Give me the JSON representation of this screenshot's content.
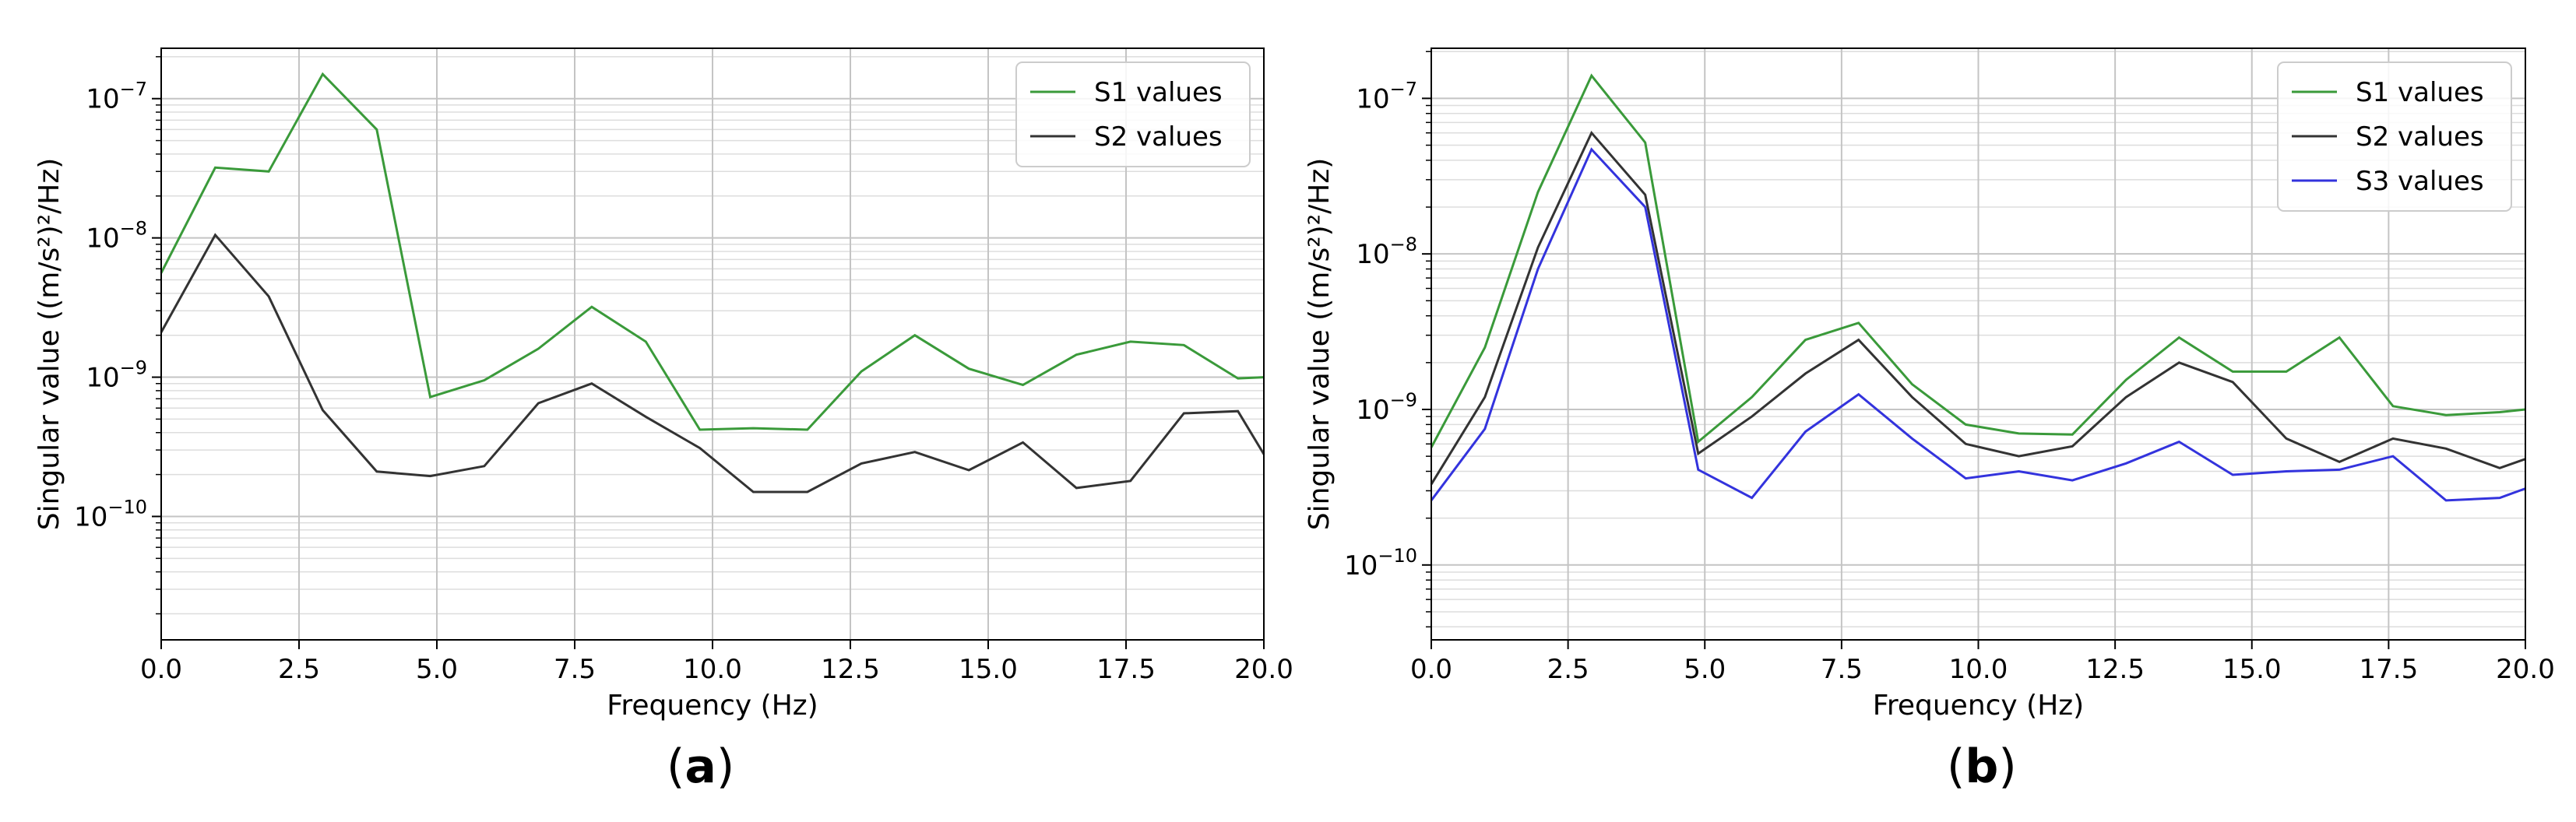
{
  "chart_data": [
    {
      "type": "line",
      "panel": "a",
      "xlabel": "Frequency (Hz)",
      "ylabel": "Singular value ((m/s²)²/Hz)",
      "xlim": [
        0,
        20
      ],
      "ylim": [
        1.3e-11,
        2.3e-07
      ],
      "yscale": "log",
      "grid": true,
      "legend_position": "top-right",
      "x_ticks": [
        0,
        2.5,
        5,
        7.5,
        10,
        12.5,
        15,
        17.5,
        20
      ],
      "x_tick_labels": [
        "0.0",
        "2.5",
        "5.0",
        "7.5",
        "10.0",
        "12.5",
        "15.0",
        "17.5",
        "20.0"
      ],
      "y_ticks": [
        {
          "value": 1e-10,
          "base": "10",
          "exp": "−10"
        },
        {
          "value": 1e-09,
          "base": "10",
          "exp": "−9"
        },
        {
          "value": 1e-08,
          "base": "10",
          "exp": "−8"
        },
        {
          "value": 1e-07,
          "base": "10",
          "exp": "−7"
        }
      ],
      "x": [
        0,
        0.98,
        1.95,
        2.93,
        3.91,
        4.88,
        5.86,
        6.84,
        7.81,
        8.79,
        9.77,
        10.74,
        11.72,
        12.7,
        13.67,
        14.65,
        15.63,
        16.6,
        17.58,
        18.55,
        19.53,
        20.0
      ],
      "series": [
        {
          "name": "S1 values",
          "color": "#3a9a3a",
          "values": [
            5.6e-09,
            3.2e-08,
            3e-08,
            1.5e-07,
            6e-08,
            7.2e-10,
            9.5e-10,
            1.6e-09,
            3.2e-09,
            1.8e-09,
            4.2e-10,
            4.3e-10,
            4.2e-10,
            1.1e-09,
            2e-09,
            1.15e-09,
            8.8e-10,
            1.45e-09,
            1.8e-09,
            1.7e-09,
            9.8e-10,
            1e-09
          ]
        },
        {
          "name": "S2 values",
          "color": "#333333",
          "values": [
            2.1e-09,
            1.05e-08,
            3.8e-09,
            5.8e-10,
            2.1e-10,
            1.95e-10,
            2.3e-10,
            6.5e-10,
            9e-10,
            5.2e-10,
            3.1e-10,
            1.5e-10,
            1.5e-10,
            2.4e-10,
            2.9e-10,
            2.15e-10,
            3.4e-10,
            1.6e-10,
            1.8e-10,
            5.5e-10,
            5.7e-10,
            2.8e-10
          ]
        }
      ]
    },
    {
      "type": "line",
      "panel": "b",
      "xlabel": "Frequency (Hz)",
      "ylabel": "Singular value ((m/s²)²/Hz)",
      "xlim": [
        0,
        20
      ],
      "ylim": [
        3.3e-11,
        2.1e-07
      ],
      "yscale": "log",
      "grid": true,
      "legend_position": "top-right",
      "x_ticks": [
        0,
        2.5,
        5,
        7.5,
        10,
        12.5,
        15,
        17.5,
        20
      ],
      "x_tick_labels": [
        "0.0",
        "2.5",
        "5.0",
        "7.5",
        "10.0",
        "12.5",
        "15.0",
        "17.5",
        "20.0"
      ],
      "y_ticks": [
        {
          "value": 1e-10,
          "base": "10",
          "exp": "−10"
        },
        {
          "value": 1e-09,
          "base": "10",
          "exp": "−9"
        },
        {
          "value": 1e-08,
          "base": "10",
          "exp": "−8"
        },
        {
          "value": 1e-07,
          "base": "10",
          "exp": "−7"
        }
      ],
      "x": [
        0,
        0.98,
        1.95,
        2.93,
        3.91,
        4.88,
        5.86,
        6.84,
        7.81,
        8.79,
        9.77,
        10.74,
        11.72,
        12.7,
        13.67,
        14.65,
        15.63,
        16.6,
        17.58,
        18.55,
        19.53,
        20.0
      ],
      "series": [
        {
          "name": "S1 values",
          "color": "#3a9a3a",
          "values": [
            5.7e-10,
            2.5e-09,
            2.5e-08,
            1.4e-07,
            5.2e-08,
            6.2e-10,
            1.2e-09,
            2.8e-09,
            3.6e-09,
            1.45e-09,
            8e-10,
            7e-10,
            6.9e-10,
            1.55e-09,
            2.9e-09,
            1.75e-09,
            1.75e-09,
            2.9e-09,
            1.05e-09,
            9.2e-10,
            9.6e-10,
            1e-09
          ]
        },
        {
          "name": "S2 values",
          "color": "#333333",
          "values": [
            3.3e-10,
            1.2e-09,
            1.1e-08,
            6e-08,
            2.4e-08,
            5.2e-10,
            9e-10,
            1.7e-09,
            2.8e-09,
            1.2e-09,
            6e-10,
            5e-10,
            5.8e-10,
            1.2e-09,
            2e-09,
            1.5e-09,
            6.5e-10,
            4.6e-10,
            6.5e-10,
            5.6e-10,
            4.2e-10,
            4.8e-10
          ]
        },
        {
          "name": "S3 values",
          "color": "#3333dd",
          "values": [
            2.6e-10,
            7.5e-10,
            8e-09,
            4.7e-08,
            2e-08,
            4.1e-10,
            2.7e-10,
            7.2e-10,
            1.25e-09,
            6.5e-10,
            3.6e-10,
            4e-10,
            3.5e-10,
            4.5e-10,
            6.2e-10,
            3.8e-10,
            4e-10,
            4.1e-10,
            5e-10,
            2.6e-10,
            2.7e-10,
            3.1e-10
          ]
        }
      ]
    }
  ],
  "captions": {
    "a": {
      "open": "(",
      "letter": "a",
      "close": ")"
    },
    "b": {
      "open": "(",
      "letter": "b",
      "close": ")"
    }
  }
}
